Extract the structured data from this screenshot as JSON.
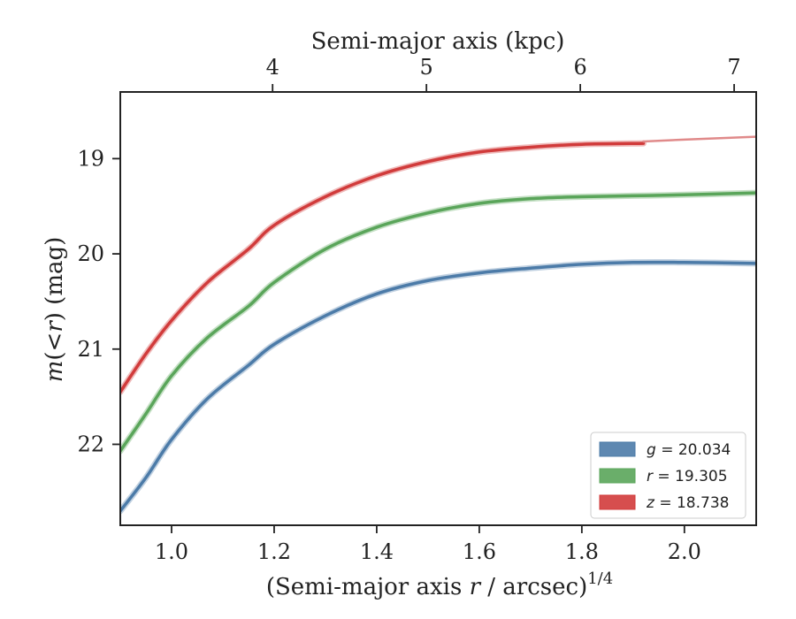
{
  "chart_data": {
    "type": "line",
    "xlabel": "(Semi-major axis r / arcsec)^{1/4}",
    "xlabel_parts": {
      "pre": "(Semi-major axis ",
      "var": "r",
      "post": " / arcsec)",
      "sup": "1/4"
    },
    "ylabel": "m(<r) (mag)",
    "ylabel_parts": {
      "var": "m",
      "mid": "(<",
      "var2": "r",
      "post": ") (mag)"
    },
    "top_xlabel": "Semi-major axis (kpc)",
    "xlim": [
      0.9,
      2.14
    ],
    "ylim": [
      22.85,
      18.3
    ],
    "y_inverted": true,
    "x_ticks": [
      1.0,
      1.2,
      1.4,
      1.6,
      1.8,
      2.0
    ],
    "x_tick_labels": [
      "1.0",
      "1.2",
      "1.4",
      "1.6",
      "1.8",
      "2.0"
    ],
    "y_ticks": [
      19,
      20,
      21,
      22
    ],
    "y_tick_labels": [
      "19",
      "20",
      "21",
      "22"
    ],
    "top_ticks": [
      {
        "x": 1.197,
        "label": "4"
      },
      {
        "x": 1.497,
        "label": "5"
      },
      {
        "x": 1.797,
        "label": "6"
      },
      {
        "x": 2.097,
        "label": "7"
      }
    ],
    "grid": false,
    "legend_position": "lower-right",
    "series": [
      {
        "name": "g = 20.034",
        "legend_var": "g",
        "legend_value": "= 20.034",
        "color": "#4c7ba8",
        "x": [
          0.9,
          0.95,
          1.0,
          1.07,
          1.15,
          1.2,
          1.3,
          1.4,
          1.5,
          1.6,
          1.7,
          1.8,
          1.9,
          2.0,
          2.14
        ],
        "y": [
          22.7,
          22.35,
          21.95,
          21.52,
          21.17,
          20.95,
          20.65,
          20.42,
          20.28,
          20.2,
          20.15,
          20.11,
          20.09,
          20.09,
          20.1
        ]
      },
      {
        "name": "r = 19.305",
        "legend_var": "r",
        "legend_value": "= 19.305",
        "color": "#5aa55a",
        "x": [
          0.9,
          0.95,
          1.0,
          1.07,
          1.15,
          1.2,
          1.3,
          1.4,
          1.5,
          1.6,
          1.7,
          1.8,
          1.9,
          2.0,
          2.14
        ],
        "y": [
          22.07,
          21.68,
          21.28,
          20.88,
          20.55,
          20.3,
          19.95,
          19.72,
          19.57,
          19.47,
          19.42,
          19.4,
          19.39,
          19.38,
          19.36
        ]
      },
      {
        "name": "z = 18.738",
        "legend_var": "z",
        "legend_value": "= 18.738",
        "color": "#d13b3b",
        "x": [
          0.9,
          0.95,
          1.0,
          1.07,
          1.15,
          1.2,
          1.3,
          1.4,
          1.5,
          1.6,
          1.7,
          1.8,
          1.92
        ],
        "y": [
          21.45,
          21.05,
          20.7,
          20.3,
          19.95,
          19.7,
          19.4,
          19.18,
          19.03,
          18.93,
          18.88,
          18.85,
          18.84
        ],
        "extension": {
          "color": "#e08a8a",
          "x": [
            1.92,
            2.0,
            2.14
          ],
          "y": [
            18.82,
            18.8,
            18.77
          ]
        }
      }
    ]
  }
}
